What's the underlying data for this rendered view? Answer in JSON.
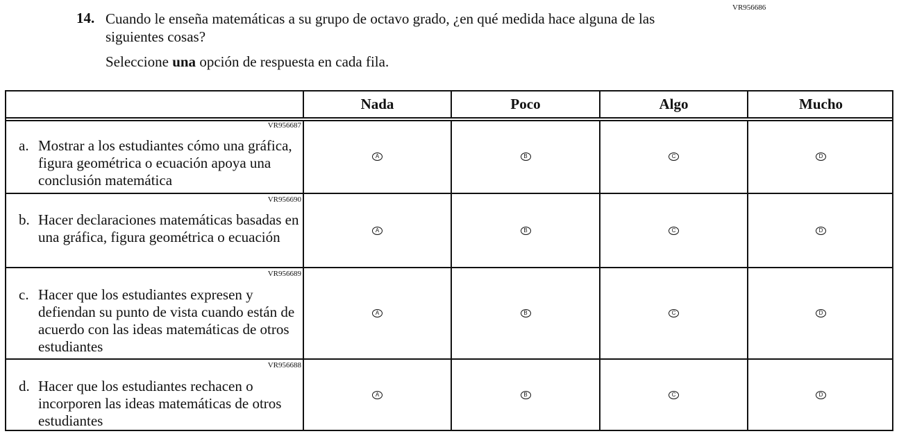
{
  "question": {
    "number": "14.",
    "code": "VR956686",
    "text": "Cuando le enseña matemáticas a su grupo de octavo grado, ¿en qué medida hace alguna de las siguientes cosas?",
    "instruction_pre": "Seleccione ",
    "instruction_bold": "una",
    "instruction_post": " opción de respuesta en cada fila."
  },
  "columns": [
    "Nada",
    "Poco",
    "Algo",
    "Mucho"
  ],
  "options": [
    "A",
    "B",
    "C",
    "D"
  ],
  "rows": [
    {
      "letter": "a.",
      "code": "VR956687",
      "text": "Mostrar a los estudiantes cómo una gráfica, figura geométrica o ecuación apoya una conclusión matemática"
    },
    {
      "letter": "b.",
      "code": "VR956690",
      "text": "Hacer declaraciones matemáticas basadas en una gráfica, figura geométrica o ecuación"
    },
    {
      "letter": "c.",
      "code": "VR956689",
      "text": "Hacer que los estudiantes expresen y defiendan su punto de vista cuando están de acuerdo con las ideas matemáticas de otros estudiantes"
    },
    {
      "letter": "d.",
      "code": "VR956688",
      "text": "Hacer que los estudiantes rechacen o incorporen las ideas matemáticas de otros estudiantes"
    }
  ]
}
